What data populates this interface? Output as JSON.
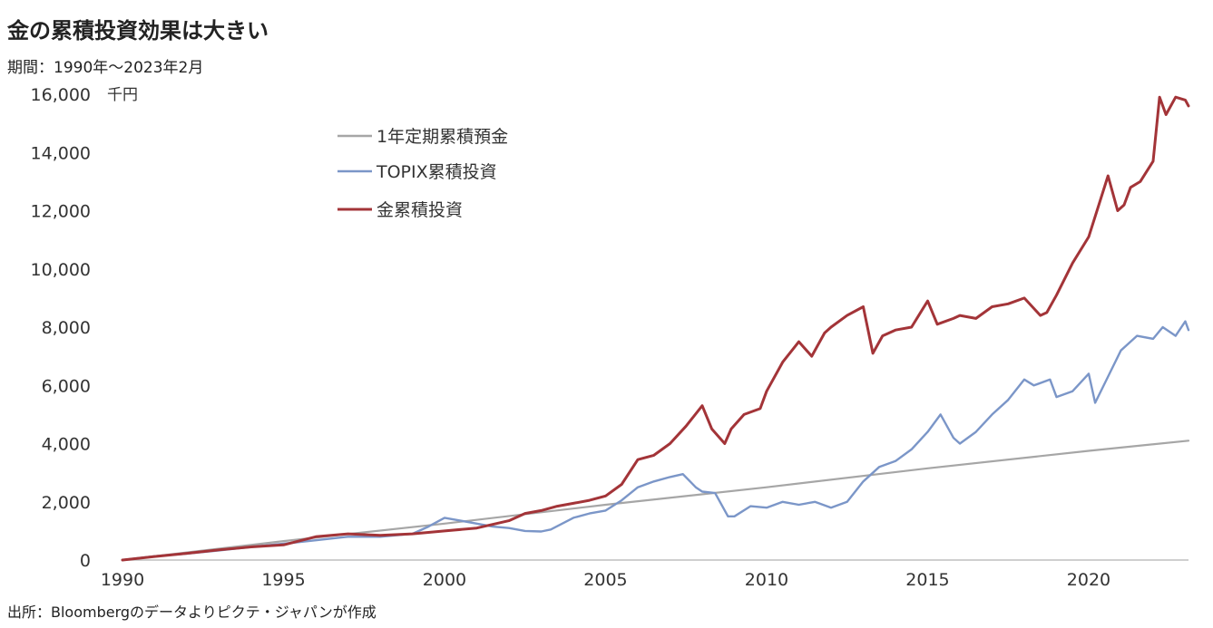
{
  "title": "金の累積投資効果は大きい",
  "subtitle": "期間：1990年～2023年2月",
  "source": "出所：Bloombergのデータよりピクテ・ジャパンが作成",
  "chart_data": {
    "type": "line",
    "ylabel": "千円",
    "ylim": [
      0,
      16000
    ],
    "yticks": [
      0,
      2000,
      4000,
      6000,
      8000,
      10000,
      12000,
      14000,
      16000
    ],
    "ytick_labels": [
      "0",
      "2,000",
      "4,000",
      "6,000",
      "8,000",
      "10,000",
      "12,000",
      "14,000",
      "16,000"
    ],
    "xlim": [
      1990,
      2023.1
    ],
    "xticks": [
      1990,
      1995,
      2000,
      2005,
      2010,
      2015,
      2020
    ],
    "xtick_labels": [
      "1990",
      "1995",
      "2000",
      "2005",
      "2010",
      "2015",
      "2020"
    ],
    "grid": false,
    "legend": "top-left",
    "series": [
      {
        "name": "1年定期累積預金",
        "color": "#a6a6a6",
        "x": [
          1990,
          1995,
          2000,
          2005,
          2010,
          2015,
          2020,
          2023.1
        ],
        "values": [
          0,
          650,
          1250,
          1900,
          2500,
          3150,
          3750,
          4100
        ]
      },
      {
        "name": "TOPIX累積投資",
        "color": "#7b96c8",
        "x": [
          1990,
          1991,
          1992,
          1993,
          1994,
          1995,
          1996,
          1997,
          1998,
          1999,
          1999.5,
          2000,
          2000.5,
          2001,
          2001.5,
          2002,
          2002.5,
          2003,
          2003.3,
          2004,
          2004.5,
          2005,
          2005.5,
          2006,
          2006.5,
          2007,
          2007.4,
          2007.8,
          2008,
          2008.4,
          2008.8,
          2009,
          2009.5,
          2010,
          2010.5,
          2011,
          2011.5,
          2012,
          2012.5,
          2013,
          2013.5,
          2014,
          2014.5,
          2015,
          2015.4,
          2015.8,
          2016,
          2016.5,
          2017,
          2017.5,
          2018,
          2018.3,
          2018.8,
          2019,
          2019.5,
          2020,
          2020.2,
          2020.6,
          2021,
          2021.5,
          2022,
          2022.3,
          2022.7,
          2023,
          2023.1
        ],
        "values": [
          0,
          130,
          220,
          330,
          450,
          560,
          680,
          800,
          800,
          900,
          1150,
          1450,
          1350,
          1250,
          1150,
          1100,
          1000,
          980,
          1050,
          1450,
          1600,
          1700,
          2050,
          2500,
          2700,
          2850,
          2950,
          2500,
          2350,
          2300,
          1500,
          1500,
          1850,
          1800,
          2000,
          1900,
          2000,
          1800,
          2000,
          2700,
          3200,
          3400,
          3800,
          4400,
          5000,
          4200,
          4000,
          4400,
          5000,
          5500,
          6200,
          6000,
          6200,
          5600,
          5800,
          6400,
          5400,
          6300,
          7200,
          7700,
          7600,
          8000,
          7700,
          8200,
          7900
        ]
      },
      {
        "name": "金累積投資",
        "color": "#a33438",
        "x": [
          1990,
          1991,
          1992,
          1993,
          1994,
          1995,
          1996,
          1997,
          1998,
          1999,
          2000,
          2001,
          2002,
          2002.5,
          2003,
          2003.5,
          2004,
          2004.5,
          2005,
          2005.5,
          2006,
          2006.5,
          2007,
          2007.5,
          2008,
          2008.3,
          2008.7,
          2008.9,
          2009.3,
          2009.8,
          2010,
          2010.5,
          2011,
          2011.4,
          2011.8,
          2012,
          2012.5,
          2013,
          2013.3,
          2013.6,
          2014,
          2014.5,
          2015,
          2015.3,
          2015.8,
          2016,
          2016.5,
          2017,
          2017.5,
          2018,
          2018.5,
          2018.7,
          2019,
          2019.5,
          2020,
          2020.6,
          2020.9,
          2021.1,
          2021.3,
          2021.6,
          2022,
          2022.2,
          2022.4,
          2022.7,
          2023,
          2023.1
        ],
        "values": [
          0,
          120,
          230,
          350,
          450,
          520,
          800,
          900,
          850,
          900,
          1000,
          1100,
          1350,
          1600,
          1700,
          1850,
          1950,
          2050,
          2200,
          2600,
          3450,
          3600,
          4000,
          4600,
          5300,
          4500,
          4000,
          4500,
          5000,
          5200,
          5800,
          6800,
          7500,
          7000,
          7800,
          8000,
          8400,
          8700,
          7100,
          7700,
          7900,
          8000,
          8900,
          8100,
          8300,
          8400,
          8300,
          8700,
          8800,
          9000,
          8400,
          8500,
          9100,
          10200,
          11100,
          13200,
          12000,
          12200,
          12800,
          13000,
          13700,
          15900,
          15300,
          15900,
          15800,
          15600
        ]
      }
    ]
  }
}
